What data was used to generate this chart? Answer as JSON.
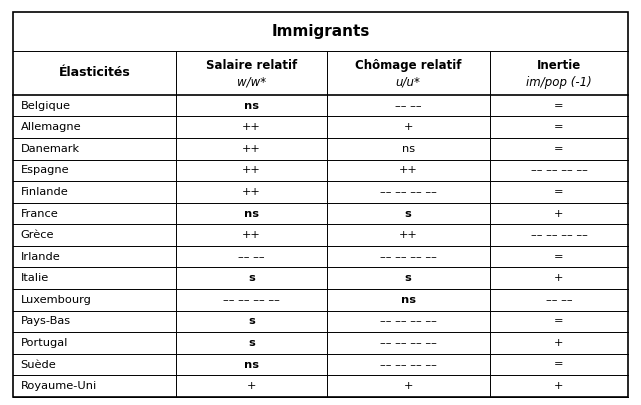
{
  "title": "Immigrants",
  "rows": [
    [
      "Belgique",
      "ns",
      "–– ––",
      "="
    ],
    [
      "Allemagne",
      "++",
      "+",
      "="
    ],
    [
      "Danemark",
      "++",
      "ns",
      "="
    ],
    [
      "Espagne",
      "++",
      "++",
      "–– –– –– ––"
    ],
    [
      "Finlande",
      "++",
      "–– –– –– ––",
      "="
    ],
    [
      "France",
      "ns",
      "s",
      "+"
    ],
    [
      "Grèce",
      "++",
      "++",
      "–– –– –– ––"
    ],
    [
      "Irlande",
      "–– ––",
      "–– –– –– ––",
      "="
    ],
    [
      "Italie",
      "s",
      "s",
      "+"
    ],
    [
      "Luxembourg",
      "–– –– –– ––",
      "ns",
      "–– ––"
    ],
    [
      "Pays-Bas",
      "s",
      "–– –– –– ––",
      "="
    ],
    [
      "Portugal",
      "s",
      "–– –– –– ––",
      "+"
    ],
    [
      "Suède",
      "ns",
      "–– –– –– ––",
      "="
    ],
    [
      "Royaume-Uni",
      "+",
      "+",
      "+"
    ]
  ],
  "bold_cells": {
    "Belgique": [
      true,
      false,
      false
    ],
    "Allemagne": [
      false,
      false,
      false
    ],
    "Danemark": [
      false,
      false,
      false
    ],
    "Espagne": [
      false,
      false,
      false
    ],
    "Finlande": [
      false,
      false,
      false
    ],
    "France": [
      true,
      true,
      false
    ],
    "Grèce": [
      false,
      false,
      false
    ],
    "Irlande": [
      false,
      false,
      false
    ],
    "Italie": [
      true,
      true,
      false
    ],
    "Luxembourg": [
      false,
      true,
      false
    ],
    "Pays-Bas": [
      true,
      false,
      false
    ],
    "Portugal": [
      true,
      false,
      false
    ],
    "Suède": [
      true,
      false,
      false
    ],
    "Royaume-Uni": [
      false,
      false,
      false
    ]
  },
  "figsize": [
    6.41,
    4.05
  ],
  "dpi": 100
}
